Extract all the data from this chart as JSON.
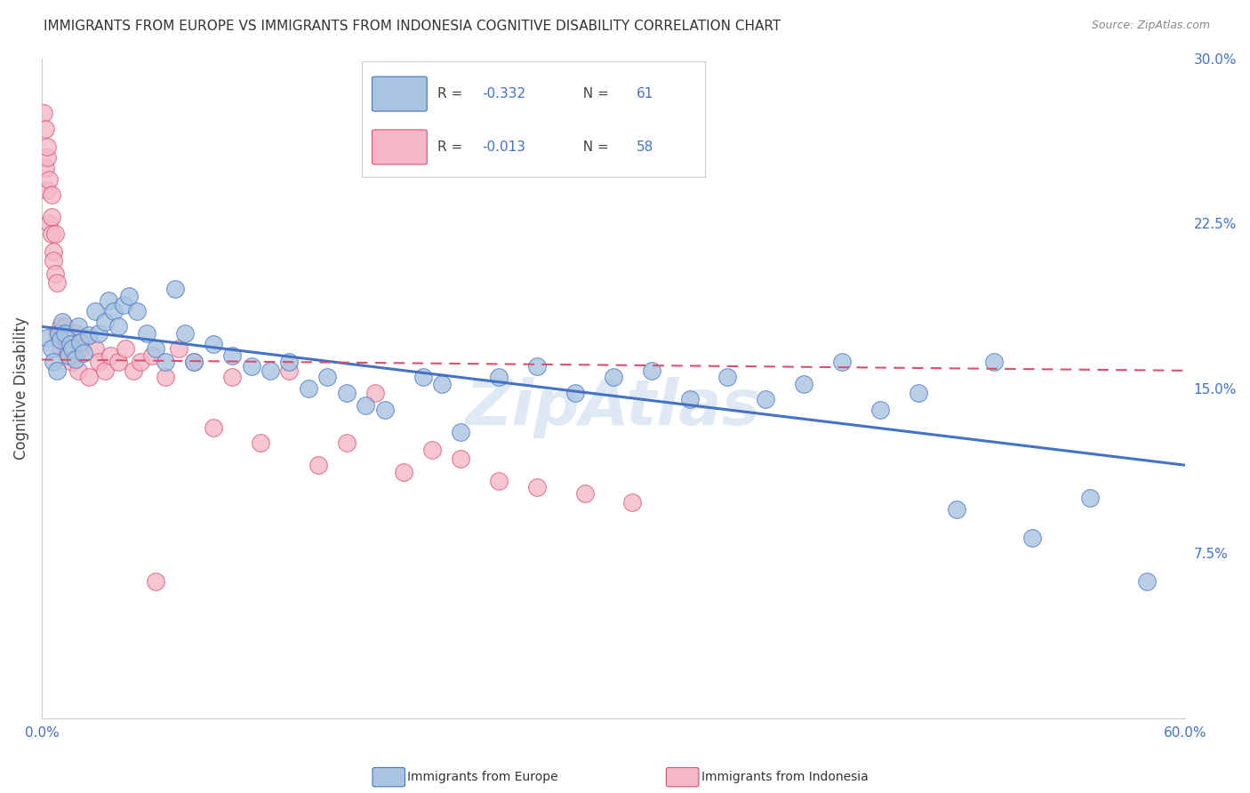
{
  "title": "IMMIGRANTS FROM EUROPE VS IMMIGRANTS FROM INDONESIA COGNITIVE DISABILITY CORRELATION CHART",
  "source": "Source: ZipAtlas.com",
  "ylabel": "Cognitive Disability",
  "xlim": [
    0.0,
    0.6
  ],
  "ylim": [
    0.0,
    0.3
  ],
  "yticks_right": [
    0.075,
    0.15,
    0.225,
    0.3
  ],
  "yticklabels_right": [
    "7.5%",
    "15.0%",
    "22.5%",
    "30.0%"
  ],
  "europe_R": "-0.332",
  "europe_N": "61",
  "indonesia_R": "-0.013",
  "indonesia_N": "58",
  "europe_color": "#a8c4e0",
  "europe_line_color": "#4472c4",
  "indonesia_color": "#f4b8c8",
  "indonesia_line_color": "#d94f6e",
  "legend_label_europe": "Immigrants from Europe",
  "legend_label_indonesia": "Immigrants from Indonesia",
  "europe_x": [
    0.003,
    0.005,
    0.006,
    0.008,
    0.009,
    0.01,
    0.011,
    0.012,
    0.014,
    0.015,
    0.016,
    0.018,
    0.019,
    0.02,
    0.022,
    0.025,
    0.028,
    0.03,
    0.033,
    0.035,
    0.038,
    0.04,
    0.043,
    0.046,
    0.05,
    0.055,
    0.06,
    0.065,
    0.07,
    0.075,
    0.08,
    0.09,
    0.1,
    0.11,
    0.12,
    0.13,
    0.14,
    0.15,
    0.16,
    0.17,
    0.18,
    0.2,
    0.21,
    0.22,
    0.24,
    0.26,
    0.28,
    0.3,
    0.32,
    0.34,
    0.36,
    0.38,
    0.4,
    0.42,
    0.44,
    0.46,
    0.48,
    0.5,
    0.52,
    0.55,
    0.58
  ],
  "europe_y": [
    0.173,
    0.168,
    0.162,
    0.158,
    0.175,
    0.172,
    0.18,
    0.175,
    0.165,
    0.17,
    0.168,
    0.163,
    0.178,
    0.171,
    0.166,
    0.174,
    0.185,
    0.175,
    0.18,
    0.19,
    0.185,
    0.178,
    0.188,
    0.192,
    0.185,
    0.175,
    0.168,
    0.162,
    0.195,
    0.175,
    0.162,
    0.17,
    0.165,
    0.16,
    0.158,
    0.162,
    0.15,
    0.155,
    0.148,
    0.142,
    0.14,
    0.155,
    0.152,
    0.13,
    0.155,
    0.16,
    0.148,
    0.155,
    0.158,
    0.145,
    0.155,
    0.145,
    0.152,
    0.162,
    0.14,
    0.148,
    0.095,
    0.162,
    0.082,
    0.1,
    0.062
  ],
  "indonesia_x": [
    0.001,
    0.002,
    0.002,
    0.003,
    0.003,
    0.003,
    0.004,
    0.004,
    0.005,
    0.005,
    0.005,
    0.006,
    0.006,
    0.007,
    0.007,
    0.008,
    0.008,
    0.009,
    0.01,
    0.01,
    0.011,
    0.012,
    0.013,
    0.014,
    0.015,
    0.016,
    0.018,
    0.019,
    0.02,
    0.022,
    0.025,
    0.028,
    0.03,
    0.033,
    0.036,
    0.04,
    0.044,
    0.048,
    0.052,
    0.058,
    0.065,
    0.072,
    0.08,
    0.09,
    0.1,
    0.115,
    0.13,
    0.145,
    0.16,
    0.175,
    0.19,
    0.205,
    0.22,
    0.24,
    0.26,
    0.285,
    0.31,
    0.06
  ],
  "indonesia_y": [
    0.275,
    0.268,
    0.25,
    0.255,
    0.26,
    0.24,
    0.245,
    0.225,
    0.228,
    0.22,
    0.238,
    0.212,
    0.208,
    0.202,
    0.22,
    0.175,
    0.198,
    0.175,
    0.178,
    0.168,
    0.175,
    0.178,
    0.168,
    0.172,
    0.165,
    0.162,
    0.175,
    0.158,
    0.168,
    0.172,
    0.155,
    0.168,
    0.162,
    0.158,
    0.165,
    0.162,
    0.168,
    0.158,
    0.162,
    0.165,
    0.155,
    0.168,
    0.162,
    0.132,
    0.155,
    0.125,
    0.158,
    0.115,
    0.125,
    0.148,
    0.112,
    0.122,
    0.118,
    0.108,
    0.105,
    0.102,
    0.098,
    0.062
  ],
  "watermark": "ZipAtlas",
  "background_color": "#ffffff",
  "grid_color": "#cccccc"
}
